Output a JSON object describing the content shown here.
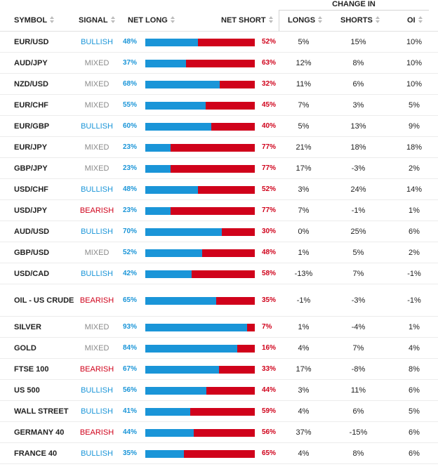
{
  "header": {
    "group_label": "CHANGE IN",
    "symbol": "SYMBOL",
    "signal": "SIGNAL",
    "net_long": "NET LONG",
    "net_short": "NET SHORT",
    "longs": "LONGS",
    "shorts": "SHORTS",
    "oi": "OI"
  },
  "colors": {
    "long": "#1a95d8",
    "short": "#d0021b",
    "mixed": "#8a8a8a"
  },
  "rows": [
    {
      "symbol": "EUR/USD",
      "signal": "BULLISH",
      "long": 48,
      "long_pct": "48%",
      "short_pct": "52%",
      "longs": "5%",
      "shorts": "15%",
      "oi": "10%"
    },
    {
      "symbol": "AUD/JPY",
      "signal": "MIXED",
      "long": 37,
      "long_pct": "37%",
      "short_pct": "63%",
      "longs": "12%",
      "shorts": "8%",
      "oi": "10%"
    },
    {
      "symbol": "NZD/USD",
      "signal": "MIXED",
      "long": 68,
      "long_pct": "68%",
      "short_pct": "32%",
      "longs": "11%",
      "shorts": "6%",
      "oi": "10%"
    },
    {
      "symbol": "EUR/CHF",
      "signal": "MIXED",
      "long": 55,
      "long_pct": "55%",
      "short_pct": "45%",
      "longs": "7%",
      "shorts": "3%",
      "oi": "5%"
    },
    {
      "symbol": "EUR/GBP",
      "signal": "BULLISH",
      "long": 60,
      "long_pct": "60%",
      "short_pct": "40%",
      "longs": "5%",
      "shorts": "13%",
      "oi": "9%"
    },
    {
      "symbol": "EUR/JPY",
      "signal": "MIXED",
      "long": 23,
      "long_pct": "23%",
      "short_pct": "77%",
      "longs": "21%",
      "shorts": "18%",
      "oi": "18%"
    },
    {
      "symbol": "GBP/JPY",
      "signal": "MIXED",
      "long": 23,
      "long_pct": "23%",
      "short_pct": "77%",
      "longs": "17%",
      "shorts": "-3%",
      "oi": "2%"
    },
    {
      "symbol": "USD/CHF",
      "signal": "BULLISH",
      "long": 48,
      "long_pct": "48%",
      "short_pct": "52%",
      "longs": "3%",
      "shorts": "24%",
      "oi": "14%"
    },
    {
      "symbol": "USD/JPY",
      "signal": "BEARISH",
      "long": 23,
      "long_pct": "23%",
      "short_pct": "77%",
      "longs": "7%",
      "shorts": "-1%",
      "oi": "1%"
    },
    {
      "symbol": "AUD/USD",
      "signal": "BULLISH",
      "long": 70,
      "long_pct": "70%",
      "short_pct": "30%",
      "longs": "0%",
      "shorts": "25%",
      "oi": "6%"
    },
    {
      "symbol": "GBP/USD",
      "signal": "MIXED",
      "long": 52,
      "long_pct": "52%",
      "short_pct": "48%",
      "longs": "1%",
      "shorts": "5%",
      "oi": "2%"
    },
    {
      "symbol": "USD/CAD",
      "signal": "BULLISH",
      "long": 42,
      "long_pct": "42%",
      "short_pct": "58%",
      "longs": "-13%",
      "shorts": "7%",
      "oi": "-1%"
    },
    {
      "symbol": "OIL - US CRUDE",
      "signal": "BEARISH",
      "long": 65,
      "long_pct": "65%",
      "short_pct": "35%",
      "longs": "-1%",
      "shorts": "-3%",
      "oi": "-1%"
    },
    {
      "symbol": "SILVER",
      "signal": "MIXED",
      "long": 93,
      "long_pct": "93%",
      "short_pct": "7%",
      "longs": "1%",
      "shorts": "-4%",
      "oi": "1%"
    },
    {
      "symbol": "GOLD",
      "signal": "MIXED",
      "long": 84,
      "long_pct": "84%",
      "short_pct": "16%",
      "longs": "4%",
      "shorts": "7%",
      "oi": "4%"
    },
    {
      "symbol": "FTSE 100",
      "signal": "BEARISH",
      "long": 67,
      "long_pct": "67%",
      "short_pct": "33%",
      "longs": "17%",
      "shorts": "-8%",
      "oi": "8%"
    },
    {
      "symbol": "US 500",
      "signal": "BULLISH",
      "long": 56,
      "long_pct": "56%",
      "short_pct": "44%",
      "longs": "3%",
      "shorts": "11%",
      "oi": "6%"
    },
    {
      "symbol": "WALL STREET",
      "signal": "BULLISH",
      "long": 41,
      "long_pct": "41%",
      "short_pct": "59%",
      "longs": "4%",
      "shorts": "6%",
      "oi": "5%"
    },
    {
      "symbol": "GERMANY 40",
      "signal": "BEARISH",
      "long": 44,
      "long_pct": "44%",
      "short_pct": "56%",
      "longs": "37%",
      "shorts": "-15%",
      "oi": "6%"
    },
    {
      "symbol": "FRANCE 40",
      "signal": "BULLISH",
      "long": 35,
      "long_pct": "35%",
      "short_pct": "65%",
      "longs": "4%",
      "shorts": "8%",
      "oi": "6%"
    }
  ]
}
